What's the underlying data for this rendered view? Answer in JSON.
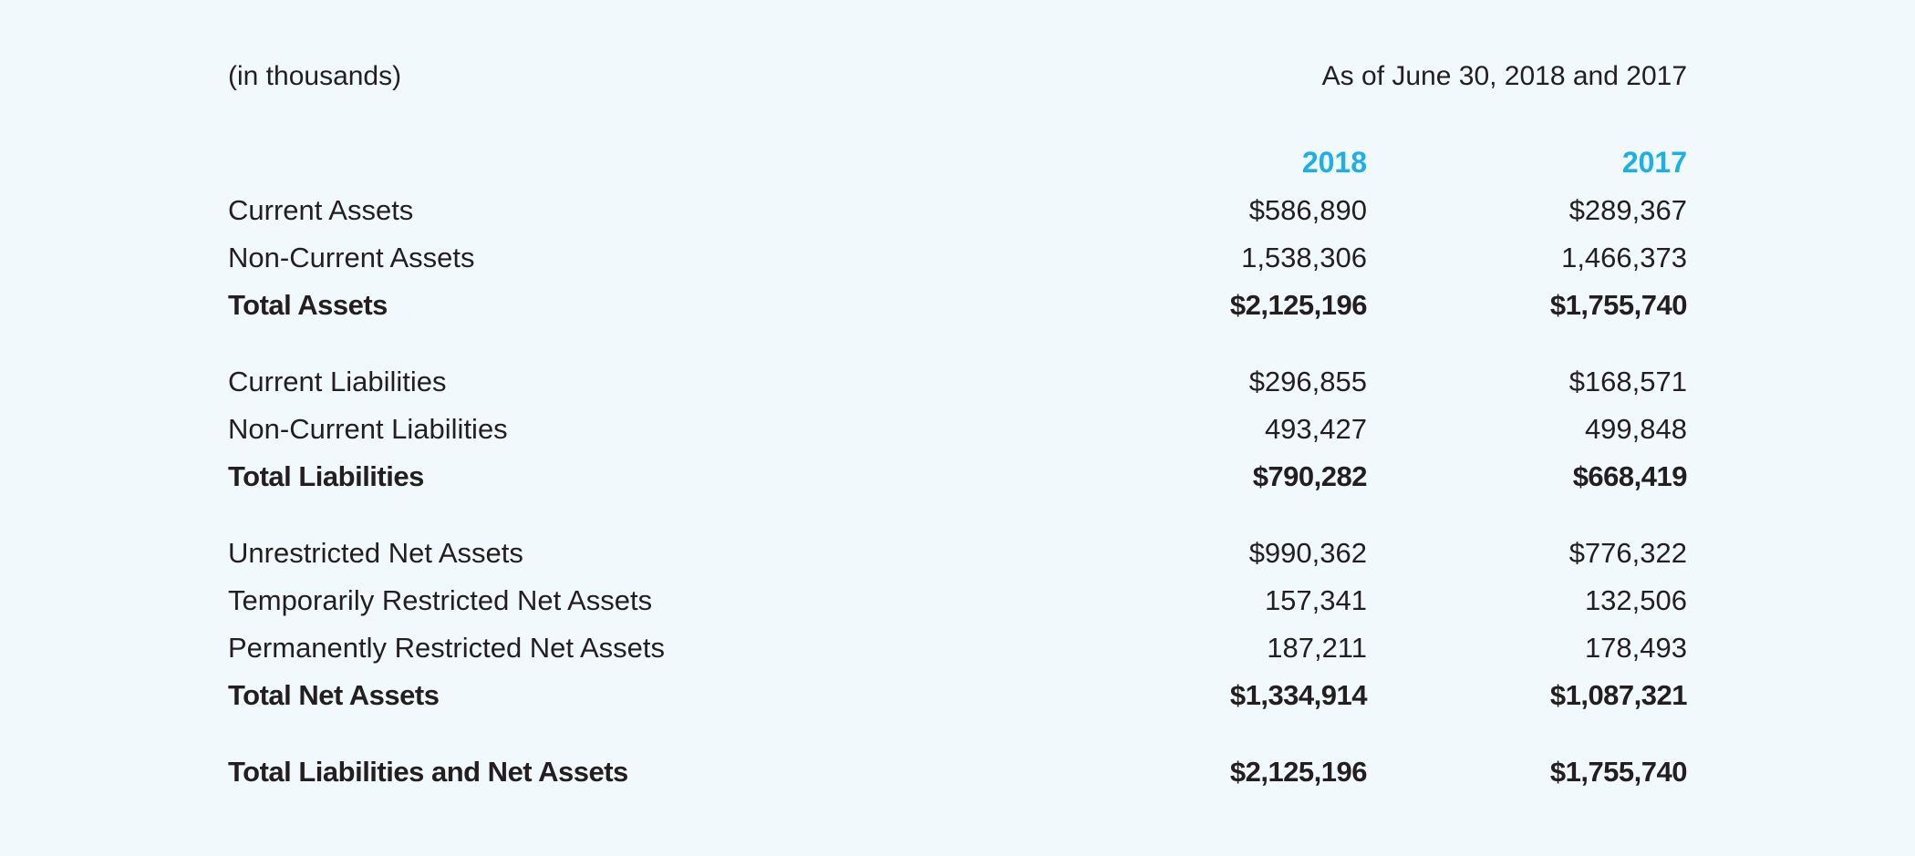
{
  "header": {
    "units": "(in thousands)",
    "as_of": "As of June 30, 2018 and 2017"
  },
  "columns": [
    "2018",
    "2017"
  ],
  "rows": [
    {
      "label": "Current Assets",
      "v2018": "$586,890",
      "v2017": "$289,367"
    },
    {
      "label": "Non-Current Assets",
      "v2018": "1,538,306",
      "v2017": "1,466,373"
    },
    {
      "label": "Total Assets",
      "v2018": "$2,125,196",
      "v2017": "$1,755,740"
    },
    {
      "label": "Current Liabilities",
      "v2018": "$296,855",
      "v2017": "$168,571"
    },
    {
      "label": "Non-Current Liabilities",
      "v2018": "493,427",
      "v2017": "499,848"
    },
    {
      "label": "Total Liabilities",
      "v2018": "$790,282",
      "v2017": "$668,419"
    },
    {
      "label": "Unrestricted Net Assets",
      "v2018": "$990,362",
      "v2017": "$776,322"
    },
    {
      "label": "Temporarily Restricted Net Assets",
      "v2018": "157,341",
      "v2017": "132,506"
    },
    {
      "label": "Permanently Restricted Net Assets",
      "v2018": "187,211",
      "v2017": "178,493"
    },
    {
      "label": "Total Net Assets",
      "v2018": "$1,334,914",
      "v2017": "$1,087,321"
    },
    {
      "label": "Total Liabilities and Net Assets",
      "v2018": "$2,125,196",
      "v2017": "$1,755,740"
    }
  ]
}
